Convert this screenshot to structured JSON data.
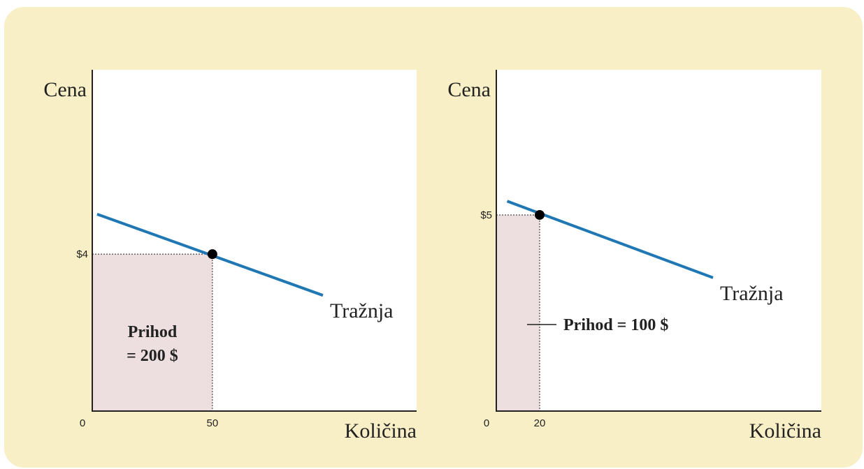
{
  "colors": {
    "background": "#f8efc6",
    "plot_bg": "#ffffff",
    "demand_line": "#1f77b4",
    "revenue_fill": "#eddfdf"
  },
  "chart_data": [
    {
      "type": "line",
      "xlabel": "Količina",
      "ylabel": "Cena",
      "series": [
        {
          "name": "Tražnja",
          "x": [
            2,
            96
          ],
          "y": [
            5.02,
            2.95
          ]
        }
      ],
      "point": {
        "x": 50,
        "y": 4
      },
      "x_ticks": [
        {
          "value": 0,
          "label": "0"
        },
        {
          "value": 50,
          "label": "50"
        }
      ],
      "y_ticks": [
        {
          "value": 4,
          "label": "$4"
        }
      ],
      "xlim": [
        0,
        135
      ],
      "ylim": [
        0,
        8.7
      ],
      "revenue_area": {
        "x": 50,
        "y": 4
      },
      "revenue_label": [
        "Prihod",
        "= 200 $"
      ],
      "revenue_pointer": false,
      "grid": false
    },
    {
      "type": "line",
      "xlabel": "Količina",
      "ylabel": "Cena",
      "series": [
        {
          "name": "Tražnja",
          "x": [
            5,
            100
          ],
          "y": [
            5.35,
            3.4
          ]
        }
      ],
      "point": {
        "x": 20,
        "y": 5
      },
      "x_ticks": [
        {
          "value": 0,
          "label": "0"
        },
        {
          "value": 20,
          "label": "20"
        }
      ],
      "y_ticks": [
        {
          "value": 5,
          "label": "$5"
        }
      ],
      "xlim": [
        0,
        150
      ],
      "ylim": [
        0,
        8.7
      ],
      "revenue_area": {
        "x": 20,
        "y": 5
      },
      "revenue_label": [
        "Prihod = 100 $"
      ],
      "revenue_pointer": true,
      "grid": false
    }
  ]
}
